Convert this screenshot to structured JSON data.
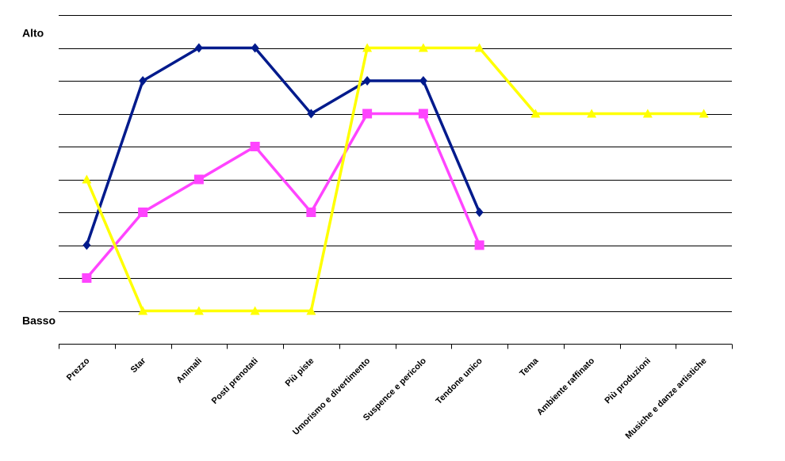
{
  "chart_data": {
    "type": "line",
    "title": "",
    "xlabel": "",
    "ylabel": "",
    "y_top_label": "Alto",
    "y_bottom_label": "Basso",
    "ylim": [
      0,
      10
    ],
    "y_gridlines": [
      0,
      1,
      2,
      3,
      4,
      5,
      6,
      7,
      8,
      9,
      10
    ],
    "grid": true,
    "legend": "none",
    "categories": [
      "Prezzo",
      "Star",
      "Animali",
      "Posti prenotati",
      "Più piste",
      "Umorismo e divertimento",
      "Suspence e pericolo",
      "Tendone unico",
      "Tema",
      "Ambiente raffinato",
      "Più produzioni",
      "Musiche e danze artistiche"
    ],
    "series": [
      {
        "color": "#001a8c",
        "marker": "diamond",
        "values": [
          3,
          8,
          9,
          9,
          7,
          8,
          8,
          4,
          null,
          null,
          null,
          null
        ]
      },
      {
        "color": "#ff44ff",
        "marker": "square",
        "values": [
          2,
          4,
          5,
          6,
          4,
          7,
          7,
          3,
          null,
          null,
          null,
          null
        ]
      },
      {
        "color": "#ffff00",
        "marker": "triangle",
        "values": [
          5,
          1,
          1,
          1,
          1,
          9,
          9,
          9,
          7,
          7,
          7,
          7
        ]
      }
    ]
  }
}
